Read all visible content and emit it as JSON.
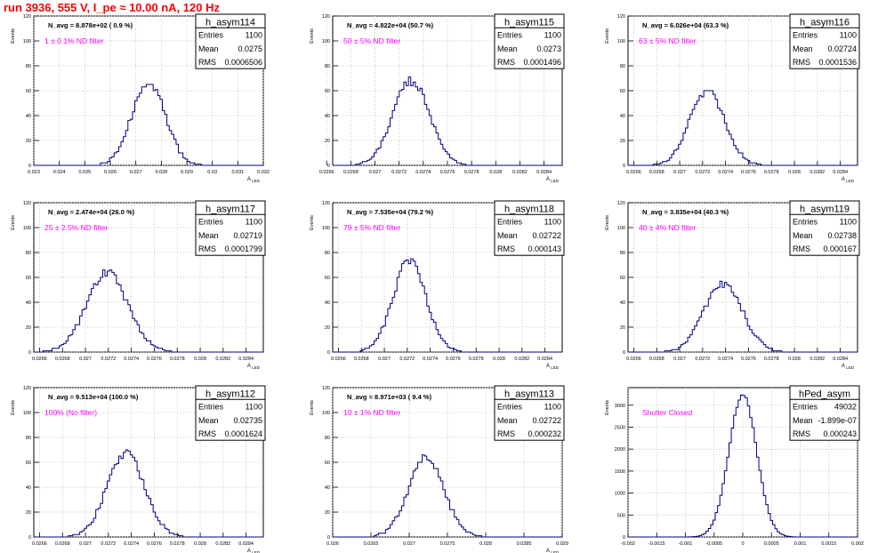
{
  "page": {
    "title": "run 3936,   555 V, I_pe ≈ 10.00 nA, 120 Hz"
  },
  "colors": {
    "title": "#ff0000",
    "annotation": "#ff00ff",
    "histogram": "#000080",
    "grid": "#bbbbbb"
  },
  "chart_data": [
    {
      "type": "histogram",
      "name": "h_asym114",
      "navg_text": "N_avg = 8.878e+02 ( 0.9 %)",
      "filter_text": "1 ± 0.1% ND filter",
      "stats": {
        "entries": "1100",
        "mean": "0.0275",
        "rms": "0.0006506"
      },
      "xlabel": "A_{LED}",
      "ylabel": "Events",
      "xlim": [
        0.023,
        0.032
      ],
      "ylim": [
        0,
        120
      ],
      "xticks": [
        0.023,
        0.024,
        0.025,
        0.026,
        0.027,
        0.028,
        0.029,
        0.03,
        0.031,
        0.032
      ],
      "xtick_labels": [
        "0.023",
        "0.024",
        "0.025",
        "0.026",
        "0.027",
        "0.028",
        "0.029",
        "0.03",
        "0.031",
        "0.032"
      ],
      "yticks": [
        0,
        20,
        40,
        60,
        80,
        100,
        120
      ],
      "hist": {
        "mean": 0.0275,
        "rms": 0.0006506,
        "peak": 67,
        "seed": 114
      }
    },
    {
      "type": "histogram",
      "name": "h_asym115",
      "navg_text": "N_avg = 4.822e+04 (50.7 %)",
      "filter_text": "50 ± 5% ND filter",
      "stats": {
        "entries": "1100",
        "mean": "0.0273",
        "rms": "0.0001496"
      },
      "xlabel": "A_{LED}",
      "ylabel": "Events",
      "xlim": [
        0.02665,
        0.02855
      ],
      "ylim": [
        0,
        120
      ],
      "xticks": [
        0.0266,
        0.0268,
        0.027,
        0.0272,
        0.0274,
        0.0276,
        0.0278,
        0.028,
        0.0282,
        0.0284
      ],
      "xtick_labels": [
        "0.0266",
        "0.0268",
        "0.027",
        "0.0272",
        "0.0274",
        "0.0276",
        "0.0278",
        "0.028",
        "0.0282",
        "0.0284"
      ],
      "yticks": [
        0,
        20,
        40,
        60,
        80,
        100,
        120
      ],
      "hist": {
        "mean": 0.0273,
        "rms": 0.0001496,
        "peak": 68,
        "seed": 115
      }
    },
    {
      "type": "histogram",
      "name": "h_asym116",
      "navg_text": "N_avg = 6.026e+04 (63.3 %)",
      "filter_text": "63 ± 5% ND filter",
      "stats": {
        "entries": "1100",
        "mean": "0.02724",
        "rms": "0.0001536"
      },
      "xlabel": "A_{LED}",
      "ylabel": "Events",
      "xlim": [
        0.02655,
        0.02855
      ],
      "ylim": [
        0,
        120
      ],
      "xticks": [
        0.0266,
        0.0268,
        0.027,
        0.0272,
        0.0274,
        0.0276,
        0.0278,
        0.028,
        0.0282,
        0.0284
      ],
      "xtick_labels": [
        "0.0266",
        "0.0268",
        "0.027",
        "0.0272",
        "0.0274",
        "0.0276",
        "0.0278",
        "0.028",
        "0.0282",
        "0.0284"
      ],
      "yticks": [
        0,
        20,
        40,
        60,
        80,
        100,
        120
      ],
      "hist": {
        "mean": 0.02724,
        "rms": 0.0001536,
        "peak": 60,
        "seed": 116
      }
    },
    {
      "type": "histogram",
      "name": "h_asym117",
      "navg_text": "N_avg = 2.474e+04 (26.0 %)",
      "filter_text": "25 ± 2.5% ND filter",
      "stats": {
        "entries": "1100",
        "mean": "0.02719",
        "rms": "0.0001799"
      },
      "xlabel": "A_{LED}",
      "ylabel": "Events",
      "xlim": [
        0.02655,
        0.02855
      ],
      "ylim": [
        0,
        120
      ],
      "xticks": [
        0.0266,
        0.0268,
        0.027,
        0.0272,
        0.0274,
        0.0276,
        0.0278,
        0.028,
        0.0282,
        0.0284
      ],
      "xtick_labels": [
        "0.0266",
        "0.0268",
        "0.027",
        "0.0272",
        "0.0274",
        "0.0276",
        "0.0278",
        "0.028",
        "0.0282",
        "0.0284"
      ],
      "yticks": [
        0,
        20,
        40,
        60,
        80,
        100,
        120
      ],
      "hist": {
        "mean": 0.02719,
        "rms": 0.0001799,
        "peak": 64,
        "seed": 117
      }
    },
    {
      "type": "histogram",
      "name": "h_asym118",
      "navg_text": "N_avg = 7.535e+04 (79.2 %)",
      "filter_text": "79 ± 5% ND filter",
      "stats": {
        "entries": "1100",
        "mean": "0.02722",
        "rms": "0.000143"
      },
      "xlabel": "A_{LED}",
      "ylabel": "Events",
      "xlim": [
        0.02655,
        0.02855
      ],
      "ylim": [
        0,
        120
      ],
      "xticks": [
        0.0266,
        0.0268,
        0.027,
        0.0272,
        0.0274,
        0.0276,
        0.0278,
        0.028,
        0.0282,
        0.0284
      ],
      "xtick_labels": [
        "0.0266",
        "0.0268",
        "0.027",
        "0.0272",
        "0.0274",
        "0.0276",
        "0.0278",
        "0.028",
        "0.0282",
        "0.0284"
      ],
      "yticks": [
        0,
        20,
        40,
        60,
        80,
        100,
        120
      ],
      "hist": {
        "mean": 0.02722,
        "rms": 0.000143,
        "peak": 74,
        "seed": 118
      }
    },
    {
      "type": "histogram",
      "name": "h_asym119",
      "navg_text": "N_avg = 3.835e+04 (40.3 %)",
      "filter_text": "40 ± 4% ND filter",
      "stats": {
        "entries": "1100",
        "mean": "0.02738",
        "rms": "0.000167"
      },
      "xlabel": "A_{LED}",
      "ylabel": "Events",
      "xlim": [
        0.02655,
        0.02855
      ],
      "ylim": [
        0,
        120
      ],
      "xticks": [
        0.0266,
        0.0268,
        0.027,
        0.0272,
        0.0274,
        0.0276,
        0.0278,
        0.028,
        0.0282,
        0.0284
      ],
      "xtick_labels": [
        "0.0266",
        "0.0268",
        "0.027",
        "0.0272",
        "0.0274",
        "0.0276",
        "0.0278",
        "0.028",
        "0.0282",
        "0.0284"
      ],
      "yticks": [
        0,
        20,
        40,
        60,
        80,
        100,
        120
      ],
      "hist": {
        "mean": 0.02738,
        "rms": 0.000167,
        "peak": 55,
        "seed": 119
      }
    },
    {
      "type": "histogram",
      "name": "h_asym112",
      "navg_text": "N_avg = 9.513e+04 (100.0 %)",
      "filter_text": "100% (No filter)",
      "stats": {
        "entries": "1100",
        "mean": "0.02735",
        "rms": "0.0001624"
      },
      "xlabel": "A_{LED}",
      "ylabel": "Events",
      "xlim": [
        0.02655,
        0.02855
      ],
      "ylim": [
        0,
        120
      ],
      "xticks": [
        0.0266,
        0.0268,
        0.027,
        0.0272,
        0.0274,
        0.0276,
        0.0278,
        0.028,
        0.0282,
        0.0284
      ],
      "xtick_labels": [
        "0.0266",
        "0.0268",
        "0.027",
        "0.0272",
        "0.0274",
        "0.0276",
        "0.0278",
        "0.028",
        "0.0282",
        "0.0284"
      ],
      "yticks": [
        0,
        20,
        40,
        60,
        80,
        100,
        120
      ],
      "hist": {
        "mean": 0.02735,
        "rms": 0.0001624,
        "peak": 67,
        "seed": 112
      }
    },
    {
      "type": "histogram",
      "name": "h_asym113",
      "navg_text": "N_avg = 8.971e+03 ( 9.4 %)",
      "filter_text": "10 ± 1% ND filter",
      "stats": {
        "entries": "1100",
        "mean": "0.02722",
        "rms": "0.000232"
      },
      "xlabel": "A_{LED}",
      "ylabel": "Events",
      "xlim": [
        0.026,
        0.029
      ],
      "ylim": [
        0,
        120
      ],
      "xticks": [
        0.026,
        0.0265,
        0.027,
        0.0275,
        0.028,
        0.0285,
        0.029
      ],
      "xtick_labels": [
        "0.026",
        "0.0265",
        "0.027",
        "0.0275",
        "0.028",
        "0.0285",
        "0.029"
      ],
      "yticks": [
        0,
        20,
        40,
        60,
        80,
        100,
        120
      ],
      "hist": {
        "mean": 0.02722,
        "rms": 0.000232,
        "peak": 64,
        "seed": 113
      }
    },
    {
      "type": "histogram",
      "name": "hPed_asym",
      "navg_text": "",
      "filter_text": "Shutter Closed",
      "stats": {
        "entries": "49032",
        "mean": "-1.899e-07",
        "rms": "0.000243"
      },
      "xlabel": "",
      "ylabel": "Events",
      "xlim": [
        -0.002,
        0.002
      ],
      "ylim": [
        0,
        3400
      ],
      "xticks": [
        -0.002,
        -0.0015,
        -0.001,
        -0.0005,
        0,
        0.0005,
        0.001,
        0.0015,
        0.002
      ],
      "xtick_labels": [
        "-0.002",
        "-0.0015",
        "-0.001",
        "-0.0005",
        "0",
        "0.0005",
        "0.001",
        "0.0015",
        "0.002"
      ],
      "yticks": [
        0,
        500,
        1000,
        1500,
        2000,
        2500,
        3000
      ],
      "hist": {
        "mean": 0,
        "rms": 0.000243,
        "peak": 3250,
        "seed": 999
      }
    }
  ]
}
